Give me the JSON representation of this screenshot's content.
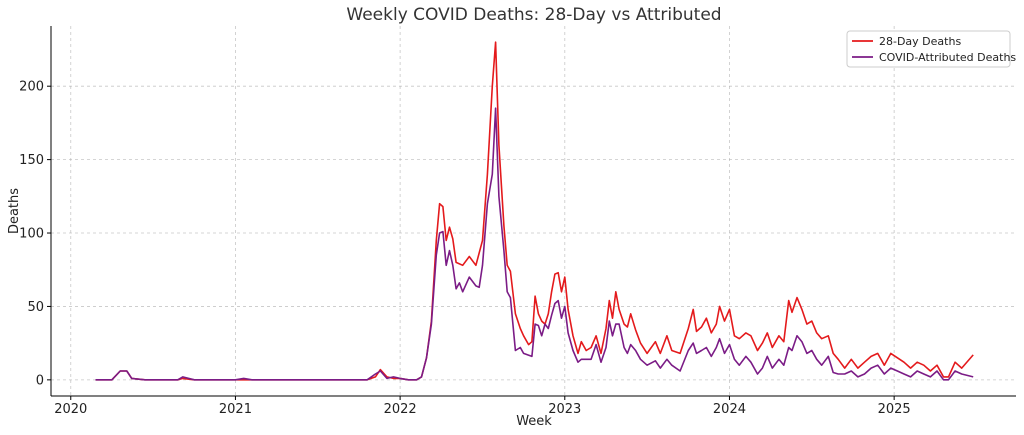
{
  "chart_data": {
    "type": "line",
    "title": "Weekly COVID Deaths: 28-Day vs Attributed",
    "xlabel": "Week",
    "ylabel": "Deaths",
    "xlim": [
      2019.88,
      2025.74
    ],
    "ylim": [
      -11,
      241
    ],
    "xticks": [
      2020,
      2021,
      2022,
      2023,
      2024,
      2025
    ],
    "xtick_labels": [
      "2020",
      "2021",
      "2022",
      "2023",
      "2024",
      "2025"
    ],
    "yticks": [
      0,
      50,
      100,
      150,
      200
    ],
    "ytick_labels": [
      "0",
      "50",
      "100",
      "150",
      "200"
    ],
    "grid": true,
    "legend": "top-right",
    "series": [
      {
        "name": "28-Day Deaths",
        "color": "#e41a1c",
        "points": [
          [
            2020.15,
            0
          ],
          [
            2020.25,
            0
          ],
          [
            2020.3,
            6
          ],
          [
            2020.34,
            6
          ],
          [
            2020.37,
            1
          ],
          [
            2020.45,
            0
          ],
          [
            2020.55,
            0
          ],
          [
            2020.65,
            0
          ],
          [
            2020.68,
            1
          ],
          [
            2020.75,
            0
          ],
          [
            2020.9,
            0
          ],
          [
            2021.0,
            0
          ],
          [
            2021.1,
            0
          ],
          [
            2021.3,
            0
          ],
          [
            2021.5,
            0
          ],
          [
            2021.7,
            0
          ],
          [
            2021.75,
            0
          ],
          [
            2021.8,
            0
          ],
          [
            2021.85,
            2
          ],
          [
            2021.88,
            7
          ],
          [
            2021.92,
            2
          ],
          [
            2021.96,
            1
          ],
          [
            2022.0,
            1
          ],
          [
            2022.05,
            0
          ],
          [
            2022.1,
            0
          ],
          [
            2022.13,
            2
          ],
          [
            2022.16,
            15
          ],
          [
            2022.19,
            40
          ],
          [
            2022.22,
            95
          ],
          [
            2022.24,
            120
          ],
          [
            2022.26,
            118
          ],
          [
            2022.28,
            95
          ],
          [
            2022.3,
            104
          ],
          [
            2022.32,
            96
          ],
          [
            2022.34,
            80
          ],
          [
            2022.38,
            78
          ],
          [
            2022.42,
            84
          ],
          [
            2022.46,
            78
          ],
          [
            2022.5,
            95
          ],
          [
            2022.53,
            140
          ],
          [
            2022.56,
            200
          ],
          [
            2022.58,
            230
          ],
          [
            2022.6,
            160
          ],
          [
            2022.63,
            105
          ],
          [
            2022.65,
            78
          ],
          [
            2022.67,
            74
          ],
          [
            2022.7,
            45
          ],
          [
            2022.73,
            35
          ],
          [
            2022.75,
            30
          ],
          [
            2022.78,
            24
          ],
          [
            2022.8,
            26
          ],
          [
            2022.82,
            57
          ],
          [
            2022.84,
            45
          ],
          [
            2022.86,
            40
          ],
          [
            2022.88,
            38
          ],
          [
            2022.9,
            45
          ],
          [
            2022.92,
            60
          ],
          [
            2022.94,
            72
          ],
          [
            2022.96,
            73
          ],
          [
            2022.98,
            60
          ],
          [
            2023.0,
            70
          ],
          [
            2023.02,
            48
          ],
          [
            2023.05,
            30
          ],
          [
            2023.08,
            18
          ],
          [
            2023.1,
            26
          ],
          [
            2023.13,
            20
          ],
          [
            2023.16,
            22
          ],
          [
            2023.19,
            30
          ],
          [
            2023.22,
            18
          ],
          [
            2023.25,
            35
          ],
          [
            2023.27,
            54
          ],
          [
            2023.29,
            42
          ],
          [
            2023.31,
            60
          ],
          [
            2023.33,
            48
          ],
          [
            2023.36,
            38
          ],
          [
            2023.38,
            36
          ],
          [
            2023.4,
            45
          ],
          [
            2023.43,
            34
          ],
          [
            2023.46,
            25
          ],
          [
            2023.5,
            18
          ],
          [
            2023.55,
            26
          ],
          [
            2023.58,
            18
          ],
          [
            2023.62,
            30
          ],
          [
            2023.65,
            20
          ],
          [
            2023.7,
            18
          ],
          [
            2023.75,
            35
          ],
          [
            2023.78,
            48
          ],
          [
            2023.8,
            33
          ],
          [
            2023.83,
            36
          ],
          [
            2023.86,
            42
          ],
          [
            2023.89,
            32
          ],
          [
            2023.92,
            38
          ],
          [
            2023.94,
            50
          ],
          [
            2023.97,
            40
          ],
          [
            2024.0,
            48
          ],
          [
            2024.03,
            30
          ],
          [
            2024.06,
            28
          ],
          [
            2024.1,
            32
          ],
          [
            2024.13,
            30
          ],
          [
            2024.17,
            20
          ],
          [
            2024.2,
            25
          ],
          [
            2024.23,
            32
          ],
          [
            2024.26,
            22
          ],
          [
            2024.3,
            30
          ],
          [
            2024.33,
            26
          ],
          [
            2024.36,
            54
          ],
          [
            2024.38,
            46
          ],
          [
            2024.41,
            56
          ],
          [
            2024.44,
            48
          ],
          [
            2024.47,
            38
          ],
          [
            2024.5,
            40
          ],
          [
            2024.53,
            32
          ],
          [
            2024.56,
            28
          ],
          [
            2024.6,
            30
          ],
          [
            2024.63,
            18
          ],
          [
            2024.66,
            14
          ],
          [
            2024.7,
            8
          ],
          [
            2024.74,
            14
          ],
          [
            2024.78,
            8
          ],
          [
            2024.82,
            12
          ],
          [
            2024.86,
            16
          ],
          [
            2024.9,
            18
          ],
          [
            2024.94,
            10
          ],
          [
            2024.98,
            18
          ],
          [
            2025.02,
            15
          ],
          [
            2025.06,
            12
          ],
          [
            2025.1,
            8
          ],
          [
            2025.14,
            12
          ],
          [
            2025.18,
            10
          ],
          [
            2025.22,
            6
          ],
          [
            2025.26,
            10
          ],
          [
            2025.3,
            2
          ],
          [
            2025.33,
            2
          ],
          [
            2025.37,
            12
          ],
          [
            2025.41,
            8
          ],
          [
            2025.48,
            17
          ]
        ]
      },
      {
        "name": "COVID-Attributed Deaths",
        "color": "#7b1c86",
        "points": [
          [
            2020.15,
            0
          ],
          [
            2020.25,
            0
          ],
          [
            2020.3,
            6
          ],
          [
            2020.34,
            6
          ],
          [
            2020.37,
            1
          ],
          [
            2020.45,
            0
          ],
          [
            2020.55,
            0
          ],
          [
            2020.65,
            0
          ],
          [
            2020.68,
            2
          ],
          [
            2020.75,
            0
          ],
          [
            2020.9,
            0
          ],
          [
            2021.0,
            0
          ],
          [
            2021.05,
            1
          ],
          [
            2021.1,
            0
          ],
          [
            2021.3,
            0
          ],
          [
            2021.5,
            0
          ],
          [
            2021.7,
            0
          ],
          [
            2021.75,
            0
          ],
          [
            2021.8,
            0
          ],
          [
            2021.85,
            4
          ],
          [
            2021.88,
            6
          ],
          [
            2021.92,
            1
          ],
          [
            2021.96,
            2
          ],
          [
            2022.0,
            1
          ],
          [
            2022.05,
            0
          ],
          [
            2022.1,
            0
          ],
          [
            2022.13,
            2
          ],
          [
            2022.16,
            15
          ],
          [
            2022.19,
            38
          ],
          [
            2022.22,
            85
          ],
          [
            2022.24,
            100
          ],
          [
            2022.26,
            101
          ],
          [
            2022.28,
            78
          ],
          [
            2022.3,
            88
          ],
          [
            2022.32,
            78
          ],
          [
            2022.34,
            62
          ],
          [
            2022.36,
            66
          ],
          [
            2022.38,
            60
          ],
          [
            2022.42,
            70
          ],
          [
            2022.46,
            64
          ],
          [
            2022.48,
            63
          ],
          [
            2022.5,
            78
          ],
          [
            2022.53,
            120
          ],
          [
            2022.56,
            140
          ],
          [
            2022.58,
            185
          ],
          [
            2022.6,
            125
          ],
          [
            2022.63,
            88
          ],
          [
            2022.65,
            60
          ],
          [
            2022.67,
            56
          ],
          [
            2022.7,
            20
          ],
          [
            2022.73,
            22
          ],
          [
            2022.75,
            18
          ],
          [
            2022.8,
            16
          ],
          [
            2022.82,
            38
          ],
          [
            2022.84,
            37
          ],
          [
            2022.86,
            30
          ],
          [
            2022.88,
            38
          ],
          [
            2022.9,
            35
          ],
          [
            2022.92,
            44
          ],
          [
            2022.94,
            52
          ],
          [
            2022.96,
            54
          ],
          [
            2022.98,
            42
          ],
          [
            2023.0,
            50
          ],
          [
            2023.02,
            32
          ],
          [
            2023.05,
            20
          ],
          [
            2023.08,
            12
          ],
          [
            2023.1,
            14
          ],
          [
            2023.16,
            14
          ],
          [
            2023.19,
            24
          ],
          [
            2023.22,
            12
          ],
          [
            2023.25,
            22
          ],
          [
            2023.27,
            40
          ],
          [
            2023.29,
            30
          ],
          [
            2023.31,
            38
          ],
          [
            2023.33,
            38
          ],
          [
            2023.36,
            22
          ],
          [
            2023.38,
            18
          ],
          [
            2023.4,
            24
          ],
          [
            2023.43,
            20
          ],
          [
            2023.46,
            14
          ],
          [
            2023.5,
            10
          ],
          [
            2023.55,
            13
          ],
          [
            2023.58,
            8
          ],
          [
            2023.62,
            14
          ],
          [
            2023.65,
            10
          ],
          [
            2023.7,
            6
          ],
          [
            2023.75,
            20
          ],
          [
            2023.78,
            25
          ],
          [
            2023.8,
            18
          ],
          [
            2023.83,
            20
          ],
          [
            2023.86,
            22
          ],
          [
            2023.89,
            16
          ],
          [
            2023.92,
            22
          ],
          [
            2023.94,
            28
          ],
          [
            2023.97,
            18
          ],
          [
            2024.0,
            24
          ],
          [
            2024.03,
            14
          ],
          [
            2024.06,
            10
          ],
          [
            2024.1,
            16
          ],
          [
            2024.13,
            12
          ],
          [
            2024.17,
            4
          ],
          [
            2024.2,
            8
          ],
          [
            2024.23,
            16
          ],
          [
            2024.26,
            8
          ],
          [
            2024.3,
            14
          ],
          [
            2024.33,
            10
          ],
          [
            2024.36,
            22
          ],
          [
            2024.38,
            20
          ],
          [
            2024.41,
            30
          ],
          [
            2024.44,
            26
          ],
          [
            2024.47,
            18
          ],
          [
            2024.5,
            20
          ],
          [
            2024.53,
            14
          ],
          [
            2024.56,
            10
          ],
          [
            2024.6,
            16
          ],
          [
            2024.63,
            5
          ],
          [
            2024.66,
            4
          ],
          [
            2024.7,
            4
          ],
          [
            2024.74,
            6
          ],
          [
            2024.78,
            2
          ],
          [
            2024.82,
            4
          ],
          [
            2024.86,
            8
          ],
          [
            2024.9,
            10
          ],
          [
            2024.94,
            4
          ],
          [
            2024.98,
            8
          ],
          [
            2025.02,
            6
          ],
          [
            2025.06,
            4
          ],
          [
            2025.1,
            2
          ],
          [
            2025.14,
            6
          ],
          [
            2025.18,
            4
          ],
          [
            2025.22,
            2
          ],
          [
            2025.26,
            6
          ],
          [
            2025.3,
            0
          ],
          [
            2025.33,
            0
          ],
          [
            2025.37,
            6
          ],
          [
            2025.41,
            4
          ],
          [
            2025.48,
            2
          ]
        ]
      }
    ]
  }
}
